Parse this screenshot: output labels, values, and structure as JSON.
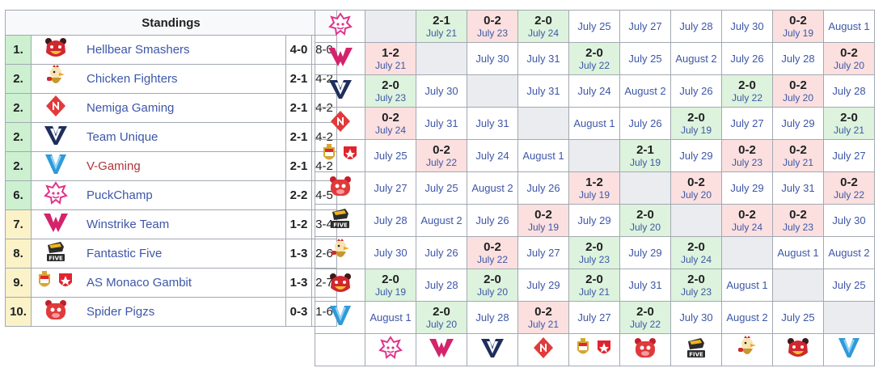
{
  "standings": {
    "title": "Standings",
    "rows": [
      {
        "rank": "1.",
        "team": "Hellbear Smashers",
        "record": "4-0",
        "games": "8-0",
        "rank_color": "green",
        "team_color": "blue",
        "logo": "hellbear-icon"
      },
      {
        "rank": "2.",
        "team": "Chicken Fighters",
        "record": "2-1",
        "games": "4-2",
        "rank_color": "green",
        "team_color": "blue",
        "logo": "chicken-icon"
      },
      {
        "rank": "2.",
        "team": "Nemiga Gaming",
        "record": "2-1",
        "games": "4-2",
        "rank_color": "green",
        "team_color": "blue",
        "logo": "nemiga-icon"
      },
      {
        "rank": "2.",
        "team": "Team Unique",
        "record": "2-1",
        "games": "4-2",
        "rank_color": "green",
        "team_color": "blue",
        "logo": "unique-icon"
      },
      {
        "rank": "2.",
        "team": "V-Gaming",
        "record": "2-1",
        "games": "4-2",
        "rank_color": "green",
        "team_color": "red",
        "logo": "vgaming-icon"
      },
      {
        "rank": "6.",
        "team": "PuckChamp",
        "record": "2-2",
        "games": "4-5",
        "rank_color": "green",
        "team_color": "blue",
        "logo": "puckchamp-icon"
      },
      {
        "rank": "7.",
        "team": "Winstrike Team",
        "record": "1-2",
        "games": "3-4",
        "rank_color": "yellow",
        "team_color": "blue",
        "logo": "winstrike-icon"
      },
      {
        "rank": "8.",
        "team": "Fantastic Five",
        "record": "1-3",
        "games": "2-6",
        "rank_color": "yellow",
        "team_color": "blue",
        "logo": "five-icon"
      },
      {
        "rank": "9.",
        "team": "AS Monaco Gambit",
        "record": "1-3",
        "games": "2-7",
        "rank_color": "yellow",
        "team_color": "blue",
        "logo": "monaco-gambit-icon"
      },
      {
        "rank": "10.",
        "team": "Spider Pigzs",
        "record": "0-3",
        "games": "1-6",
        "rank_color": "yellow",
        "team_color": "blue",
        "logo": "spiderpigzs-icon"
      }
    ]
  },
  "grid": {
    "row_logos": [
      "puckchamp-icon",
      "winstrike-icon",
      "unique-icon",
      "nemiga-icon",
      "monaco-gambit-icon",
      "spiderpigzs-icon",
      "five-icon",
      "chicken-icon",
      "hellbear-icon",
      "vgaming-icon"
    ],
    "col_logos": [
      "puckchamp-icon",
      "winstrike-icon",
      "unique-icon",
      "nemiga-icon",
      "monaco-gambit-icon",
      "spiderpigzs-icon",
      "five-icon",
      "chicken-icon",
      "hellbear-icon",
      "vgaming-icon"
    ],
    "rows": [
      [
        {
          "t": "blank"
        },
        {
          "t": "win",
          "s": "2-1",
          "d": "July 21"
        },
        {
          "t": "loss",
          "s": "0-2",
          "d": "July 23"
        },
        {
          "t": "win",
          "s": "2-0",
          "d": "July 24"
        },
        {
          "t": "date",
          "d": "July 25"
        },
        {
          "t": "date",
          "d": "July 27"
        },
        {
          "t": "date",
          "d": "July 28"
        },
        {
          "t": "date",
          "d": "July 30"
        },
        {
          "t": "loss",
          "s": "0-2",
          "d": "July 19"
        },
        {
          "t": "date",
          "d": "August 1"
        }
      ],
      [
        {
          "t": "loss",
          "s": "1-2",
          "d": "July 21"
        },
        {
          "t": "blank"
        },
        {
          "t": "date",
          "d": "July 30"
        },
        {
          "t": "date",
          "d": "July 31"
        },
        {
          "t": "win",
          "s": "2-0",
          "d": "July 22"
        },
        {
          "t": "date",
          "d": "July 25"
        },
        {
          "t": "date",
          "d": "August 2"
        },
        {
          "t": "date",
          "d": "July 26"
        },
        {
          "t": "date",
          "d": "July 28"
        },
        {
          "t": "loss",
          "s": "0-2",
          "d": "July 20"
        }
      ],
      [
        {
          "t": "win",
          "s": "2-0",
          "d": "July 23"
        },
        {
          "t": "date",
          "d": "July 30"
        },
        {
          "t": "blank"
        },
        {
          "t": "date",
          "d": "July 31"
        },
        {
          "t": "date",
          "d": "July 24"
        },
        {
          "t": "date",
          "d": "August 2"
        },
        {
          "t": "date",
          "d": "July 26"
        },
        {
          "t": "win",
          "s": "2-0",
          "d": "July 22"
        },
        {
          "t": "loss",
          "s": "0-2",
          "d": "July 20"
        },
        {
          "t": "date",
          "d": "July 28"
        }
      ],
      [
        {
          "t": "loss",
          "s": "0-2",
          "d": "July 24"
        },
        {
          "t": "date",
          "d": "July 31"
        },
        {
          "t": "date",
          "d": "July 31"
        },
        {
          "t": "blank"
        },
        {
          "t": "date",
          "d": "August 1"
        },
        {
          "t": "date",
          "d": "July 26"
        },
        {
          "t": "win",
          "s": "2-0",
          "d": "July 19"
        },
        {
          "t": "date",
          "d": "July 27"
        },
        {
          "t": "date",
          "d": "July 29"
        },
        {
          "t": "win",
          "s": "2-0",
          "d": "July 21"
        }
      ],
      [
        {
          "t": "date",
          "d": "July 25"
        },
        {
          "t": "loss",
          "s": "0-2",
          "d": "July 22"
        },
        {
          "t": "date",
          "d": "July 24"
        },
        {
          "t": "date",
          "d": "August 1"
        },
        {
          "t": "blank"
        },
        {
          "t": "win",
          "s": "2-1",
          "d": "July 19"
        },
        {
          "t": "date",
          "d": "July 29"
        },
        {
          "t": "loss",
          "s": "0-2",
          "d": "July 23"
        },
        {
          "t": "loss",
          "s": "0-2",
          "d": "July 21"
        },
        {
          "t": "date",
          "d": "July 27"
        }
      ],
      [
        {
          "t": "date",
          "d": "July 27"
        },
        {
          "t": "date",
          "d": "July 25"
        },
        {
          "t": "date",
          "d": "August 2"
        },
        {
          "t": "date",
          "d": "July 26"
        },
        {
          "t": "loss",
          "s": "1-2",
          "d": "July 19"
        },
        {
          "t": "blank"
        },
        {
          "t": "loss",
          "s": "0-2",
          "d": "July 20"
        },
        {
          "t": "date",
          "d": "July 29"
        },
        {
          "t": "date",
          "d": "July 31"
        },
        {
          "t": "loss",
          "s": "0-2",
          "d": "July 22"
        }
      ],
      [
        {
          "t": "date",
          "d": "July 28"
        },
        {
          "t": "date",
          "d": "August 2"
        },
        {
          "t": "date",
          "d": "July 26"
        },
        {
          "t": "loss",
          "s": "0-2",
          "d": "July 19"
        },
        {
          "t": "date",
          "d": "July 29"
        },
        {
          "t": "win",
          "s": "2-0",
          "d": "July 20"
        },
        {
          "t": "blank"
        },
        {
          "t": "loss",
          "s": "0-2",
          "d": "July 24"
        },
        {
          "t": "loss",
          "s": "0-2",
          "d": "July 23"
        },
        {
          "t": "date",
          "d": "July 30"
        }
      ],
      [
        {
          "t": "date",
          "d": "July 30"
        },
        {
          "t": "date",
          "d": "July 26"
        },
        {
          "t": "loss",
          "s": "0-2",
          "d": "July 22"
        },
        {
          "t": "date",
          "d": "July 27"
        },
        {
          "t": "win",
          "s": "2-0",
          "d": "July 23"
        },
        {
          "t": "date",
          "d": "July 29"
        },
        {
          "t": "win",
          "s": "2-0",
          "d": "July 24"
        },
        {
          "t": "blank"
        },
        {
          "t": "date",
          "d": "August 1"
        },
        {
          "t": "date",
          "d": "August 2"
        }
      ],
      [
        {
          "t": "win",
          "s": "2-0",
          "d": "July 19"
        },
        {
          "t": "date",
          "d": "July 28"
        },
        {
          "t": "win",
          "s": "2-0",
          "d": "July 20"
        },
        {
          "t": "date",
          "d": "July 29"
        },
        {
          "t": "win",
          "s": "2-0",
          "d": "July 21"
        },
        {
          "t": "date",
          "d": "July 31"
        },
        {
          "t": "win",
          "s": "2-0",
          "d": "July 23"
        },
        {
          "t": "date",
          "d": "August 1"
        },
        {
          "t": "blank"
        },
        {
          "t": "date",
          "d": "July 25"
        }
      ],
      [
        {
          "t": "date",
          "d": "August 1"
        },
        {
          "t": "win",
          "s": "2-0",
          "d": "July 20"
        },
        {
          "t": "date",
          "d": "July 28"
        },
        {
          "t": "loss",
          "s": "0-2",
          "d": "July 21"
        },
        {
          "t": "date",
          "d": "July 27"
        },
        {
          "t": "win",
          "s": "2-0",
          "d": "July 22"
        },
        {
          "t": "date",
          "d": "July 30"
        },
        {
          "t": "date",
          "d": "August 2"
        },
        {
          "t": "date",
          "d": "July 25"
        },
        {
          "t": "blank"
        }
      ]
    ]
  },
  "colors": {
    "win": "#ddf3dd",
    "loss": "#fbe0df",
    "blank": "#eaecf0",
    "rank_green": "#ccf0d0",
    "rank_yellow": "#fbf2c8",
    "link_blue": "#3d57a8",
    "link_red": "#b0343a"
  }
}
